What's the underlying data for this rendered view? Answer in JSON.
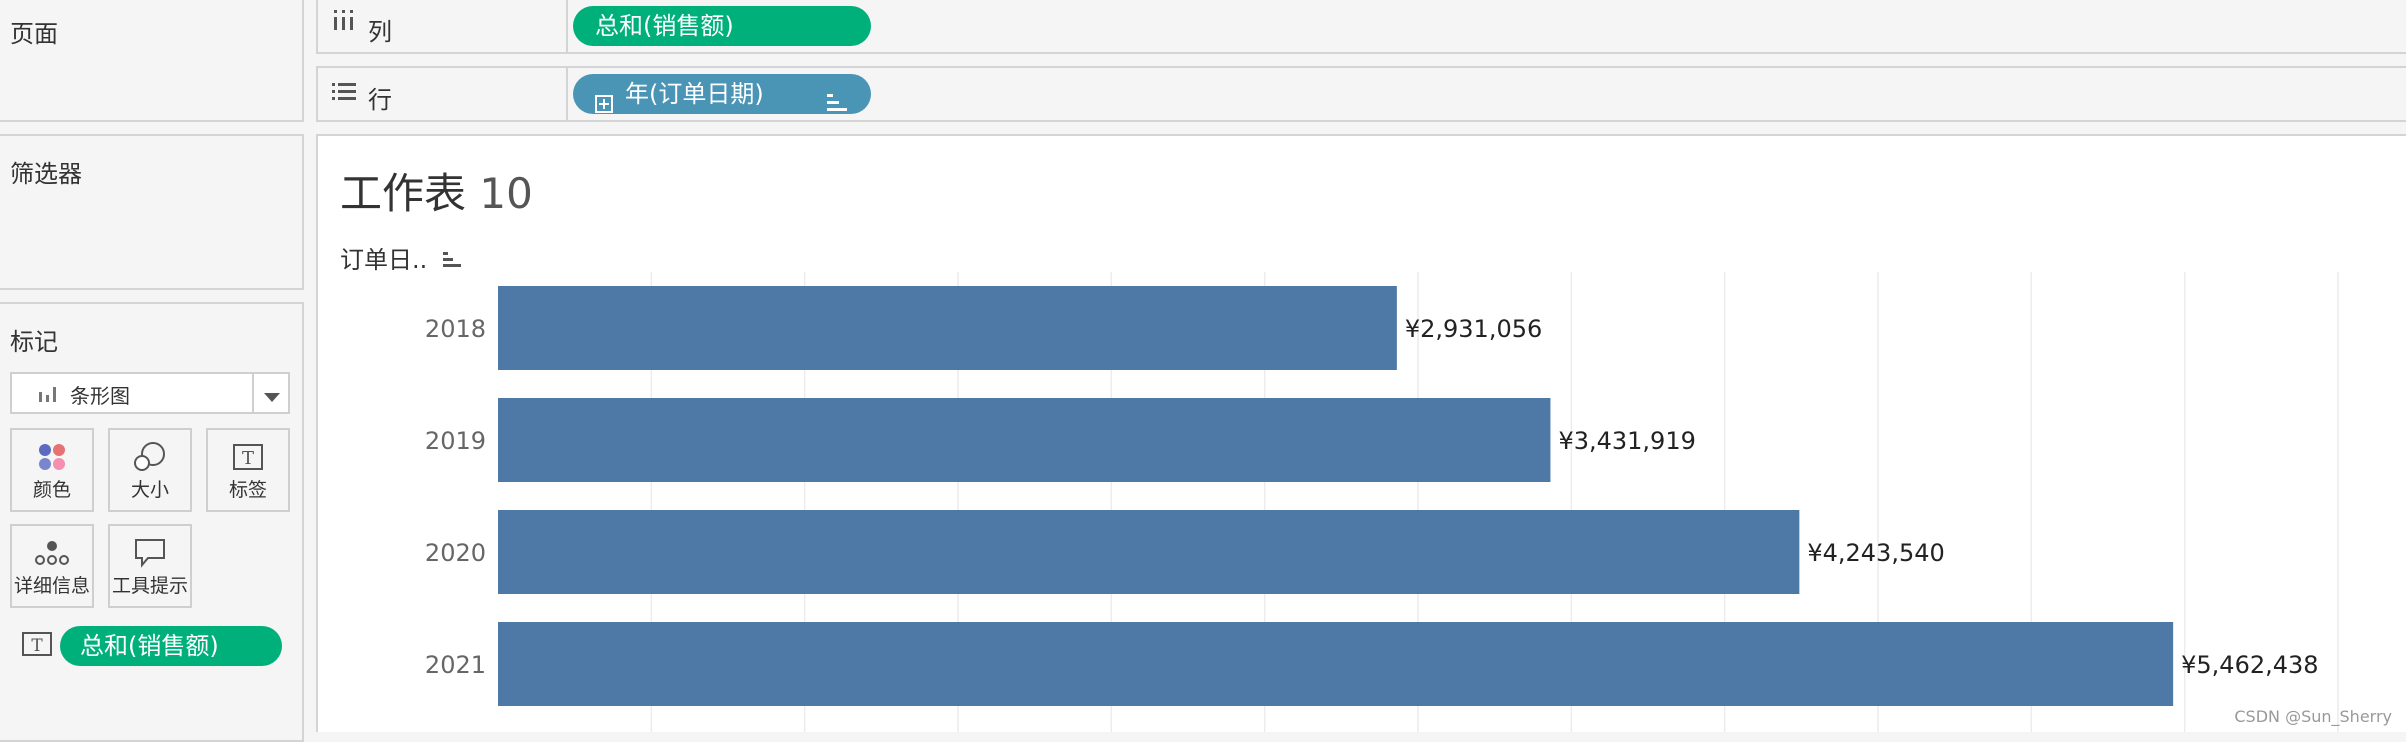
{
  "left_panels": {
    "pages_title": "页面",
    "filters_title": "筛选器",
    "marks_title": "标记"
  },
  "marks": {
    "mark_type": "条形图",
    "buttons": [
      {
        "label": "颜色",
        "icon": "color-dots-icon"
      },
      {
        "label": "大小",
        "icon": "size-circles-icon"
      },
      {
        "label": "标签",
        "icon": "text-label-icon"
      },
      {
        "label": "详细信息",
        "icon": "detail-dots-icon"
      },
      {
        "label": "工具提示",
        "icon": "tooltip-bubble-icon"
      }
    ],
    "label_field": "总和(销售额)"
  },
  "shelves": {
    "columns": {
      "label": "列",
      "pill": "总和(销售额)"
    },
    "rows": {
      "label": "行",
      "pill": "年(订单日期)"
    }
  },
  "worksheet": {
    "title_text": "工作表",
    "title_num": "10",
    "row_header": "订单日.."
  },
  "chart_data": {
    "type": "bar",
    "orientation": "horizontal",
    "categories": [
      "2018",
      "2019",
      "2020",
      "2021"
    ],
    "values": [
      2931056,
      3431919,
      4243540,
      5462438
    ],
    "value_labels": [
      "¥2,931,056",
      "¥3,431,919",
      "¥4,243,540",
      "¥5,462,438"
    ],
    "xlim": [
      0,
      6000000
    ],
    "grid": true,
    "bar_color": "#4e79a7"
  },
  "watermark": "CSDN @Sun_Sherry",
  "colors": {
    "green_pill": "#00b07b",
    "blue_pill": "#4a94b5"
  }
}
